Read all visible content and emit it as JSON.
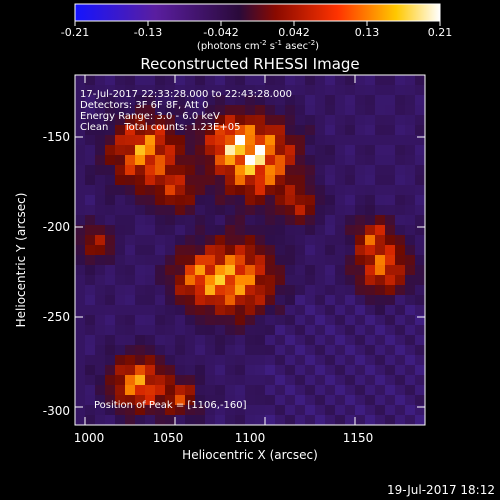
{
  "colorbar": {
    "ticks": [
      "-0.21",
      "-0.13",
      "-0.042",
      "0.042",
      "0.13",
      "0.21"
    ],
    "unit_main": "(photons cm",
    "unit_exp1": "-2",
    "unit_s": " s",
    "unit_exp2": "-1",
    "unit_asec": " asec",
    "unit_exp3": "-2",
    "unit_close": ")",
    "colors": [
      "#1414ff",
      "#5a1ea0",
      "#2a0a3a",
      "#8a0a00",
      "#ff3300",
      "#ffc800",
      "#ffffff"
    ]
  },
  "plot": {
    "title": "Reconstructed RHESSI Image",
    "info_line1": "17-Jul-2017 22:33:28.000 to 22:43:28.000",
    "info_line2": "Detectors: 3F 6F 8F, Att 0",
    "info_line3": "Energy Range: 3.0 - 6.0 keV",
    "info_line4": "Clean     Total counts: 1.23E+05",
    "peak_label": "Position of Peak = [1106,-160]",
    "xlabel": "Heliocentric X (arcsec)",
    "ylabel": "Heliocentric Y (arcsec)",
    "xticks": [
      "1000",
      "1050",
      "1100",
      "1150"
    ],
    "yticks": [
      "-150",
      "-200",
      "-250",
      "-300"
    ]
  },
  "footer": {
    "timestamp": "19-Jul-2017 18:12"
  }
}
